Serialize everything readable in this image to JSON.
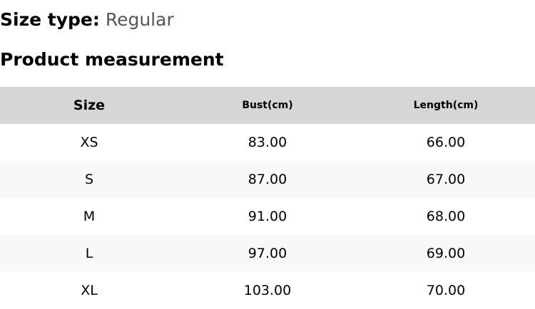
{
  "size_type": {
    "label": "Size type:",
    "value": "Regular"
  },
  "title": "Product measurement",
  "table": {
    "headers": [
      "Size",
      "Bust(cm)",
      "Length(cm)"
    ],
    "rows": [
      [
        "XS",
        "83.00",
        "66.00"
      ],
      [
        "S",
        "87.00",
        "67.00"
      ],
      [
        "M",
        "91.00",
        "68.00"
      ],
      [
        "L",
        "97.00",
        "69.00"
      ],
      [
        "XL",
        "103.00",
        "70.00"
      ]
    ]
  }
}
